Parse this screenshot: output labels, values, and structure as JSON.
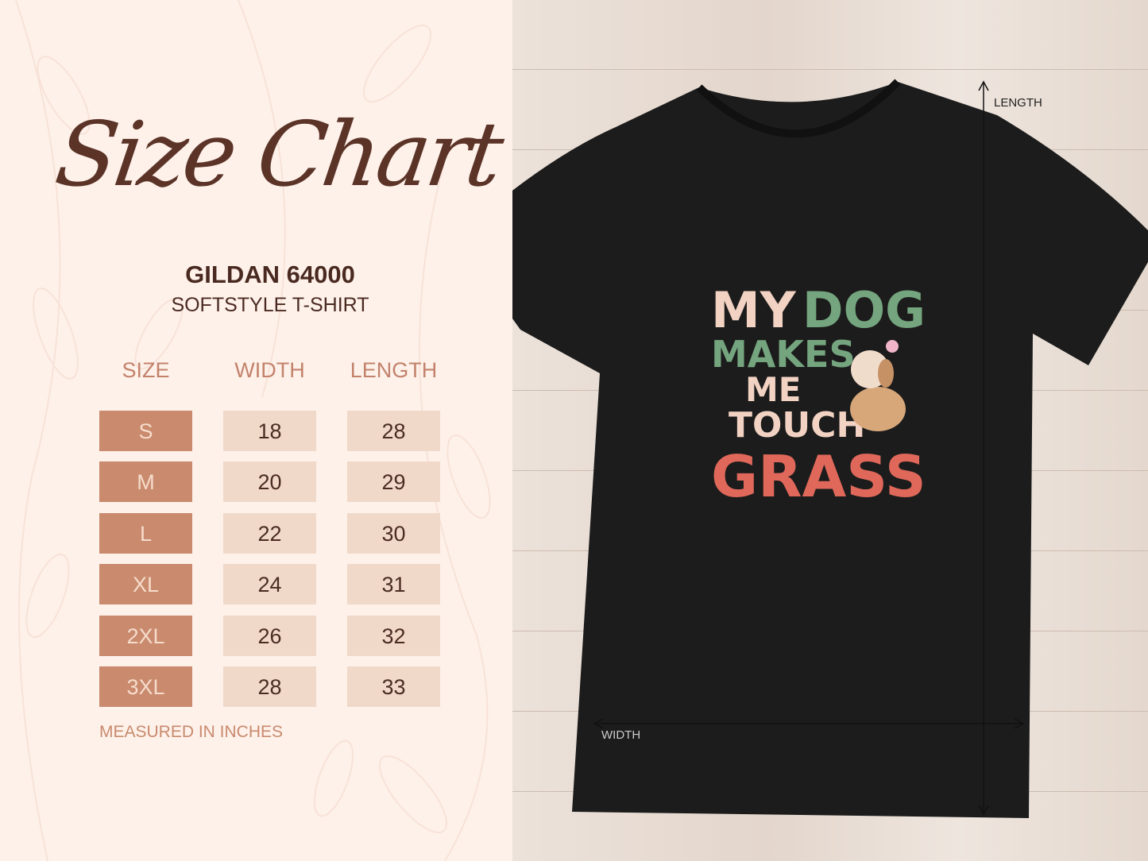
{
  "title": "Size Chart",
  "product": {
    "brand_model": "GILDAN 64000",
    "style": "SOFTSTYLE T-SHIRT"
  },
  "table": {
    "headers": [
      "SIZE",
      "WIDTH",
      "LENGTH"
    ],
    "rows": [
      {
        "size": "S",
        "width": "18",
        "length": "28"
      },
      {
        "size": "M",
        "width": "20",
        "length": "29"
      },
      {
        "size": "L",
        "width": "22",
        "length": "30"
      },
      {
        "size": "XL",
        "width": "24",
        "length": "31"
      },
      {
        "size": "2XL",
        "width": "26",
        "length": "32"
      },
      {
        "size": "3XL",
        "width": "28",
        "length": "33"
      }
    ]
  },
  "note": "MEASURED IN INCHES",
  "measure_labels": {
    "length": "LENGTH",
    "width": "WIDTH"
  },
  "shirt_print": {
    "lines": [
      "MY",
      "DOG",
      "MAKES",
      "ME",
      "TOUCH",
      "GRASS"
    ]
  },
  "colors": {
    "accent": "#c98a6e",
    "cell": "#f1d9c9",
    "text": "#4a2c22",
    "shirt": "#1c1c1c",
    "print_pink": "#f2d2c2",
    "print_green": "#74a57e",
    "print_yellow": "#f0c46a",
    "print_red": "#e0685a"
  }
}
